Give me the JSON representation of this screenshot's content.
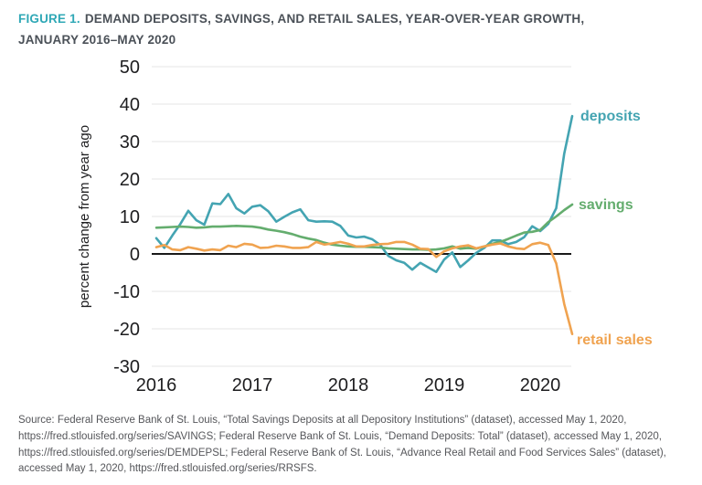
{
  "header": {
    "figure_label": "FIGURE 1.",
    "title_line1": "DEMAND DEPOSITS, SAVINGS, AND RETAIL SALES, YEAR-OVER-YEAR GROWTH,",
    "title_line2": "JANUARY 2016–MAY 2020",
    "accent_color": "#2fa8b6",
    "title_color": "#4b5158"
  },
  "chart_data": {
    "type": "line",
    "x_unit": "month",
    "x_range": [
      "2016-01",
      "2020-05"
    ],
    "xticks": [
      "2016",
      "2017",
      "2018",
      "2019",
      "2020"
    ],
    "ylabel": "percent change from year ago",
    "ylim": [
      -30,
      50
    ],
    "yticks": [
      "50",
      "40",
      "30",
      "20",
      "10",
      "0",
      "-10",
      "-20",
      "-30"
    ],
    "grid": "horizontal",
    "grid_color": "#e4e4e4",
    "zero_line_color": "#1a1a1a",
    "legend_position": "right of line ends",
    "series": [
      {
        "name": "deposits",
        "color": "#44a4b2",
        "values": [
          4.2,
          1.6,
          4.9,
          8.0,
          11.5,
          9.0,
          7.8,
          13.5,
          13.3,
          16.0,
          12.2,
          10.8,
          12.6,
          13.0,
          11.4,
          8.6,
          9.9,
          11.1,
          11.9,
          9.0,
          8.6,
          8.7,
          8.6,
          7.5,
          4.9,
          4.4,
          4.6,
          3.9,
          2.4,
          -0.5,
          -1.7,
          -2.4,
          -4.2,
          -2.4,
          -3.6,
          -4.8,
          -1.5,
          0.4,
          -3.5,
          -1.7,
          0.3,
          1.6,
          3.6,
          3.6,
          2.6,
          3.2,
          4.5,
          7.4,
          6.1,
          8.0,
          12.2,
          26.8,
          36.8
        ]
      },
      {
        "name": "savings",
        "color": "#64ad6e",
        "values": [
          7.0,
          7.1,
          7.2,
          7.3,
          7.2,
          7.0,
          7.1,
          7.3,
          7.3,
          7.4,
          7.5,
          7.4,
          7.3,
          7.0,
          6.5,
          6.2,
          5.8,
          5.3,
          4.6,
          4.1,
          3.7,
          3.0,
          2.5,
          2.2,
          2.0,
          1.9,
          1.9,
          1.8,
          1.7,
          1.5,
          1.4,
          1.3,
          1.2,
          1.2,
          1.1,
          1.2,
          1.5,
          2.0,
          1.4,
          1.6,
          1.4,
          2.0,
          2.7,
          3.2,
          4.0,
          4.9,
          5.7,
          5.9,
          6.4,
          8.5,
          10.0,
          11.7,
          13.2
        ]
      },
      {
        "name": "retail sales",
        "color": "#f0a350",
        "values": [
          1.8,
          2.4,
          1.2,
          1.0,
          1.8,
          1.4,
          0.9,
          1.2,
          1.0,
          2.2,
          1.8,
          2.7,
          2.5,
          1.6,
          1.7,
          2.2,
          2.0,
          1.6,
          1.6,
          1.8,
          3.2,
          2.5,
          2.8,
          3.2,
          2.7,
          2.0,
          2.0,
          2.4,
          2.6,
          2.7,
          3.2,
          3.2,
          2.5,
          1.4,
          1.3,
          -0.8,
          0.7,
          1.5,
          2.0,
          2.3,
          1.5,
          2.0,
          2.5,
          2.8,
          2.0,
          1.5,
          1.3,
          2.6,
          3.0,
          2.4,
          -2.5,
          -13.4,
          -21.4
        ]
      }
    ]
  },
  "footer": {
    "source": "Source: Federal Reserve Bank of St. Louis, “Total Savings Deposits at all Depository Institutions” (dataset), accessed May 1, 2020, https://fred.stlouisfed.org/series/SAVINGS; Federal Reserve Bank of St. Louis, “Demand Deposits: Total” (dataset), accessed May 1, 2020, https://fred.stlouisfed.org/series/DEMDEPSL; Federal Reserve Bank of St. Louis, “Advance Real Retail and Food Services Sales” (dataset), accessed May 1, 2020, https://fred.stlouisfed.org/series/RRSFS."
  }
}
